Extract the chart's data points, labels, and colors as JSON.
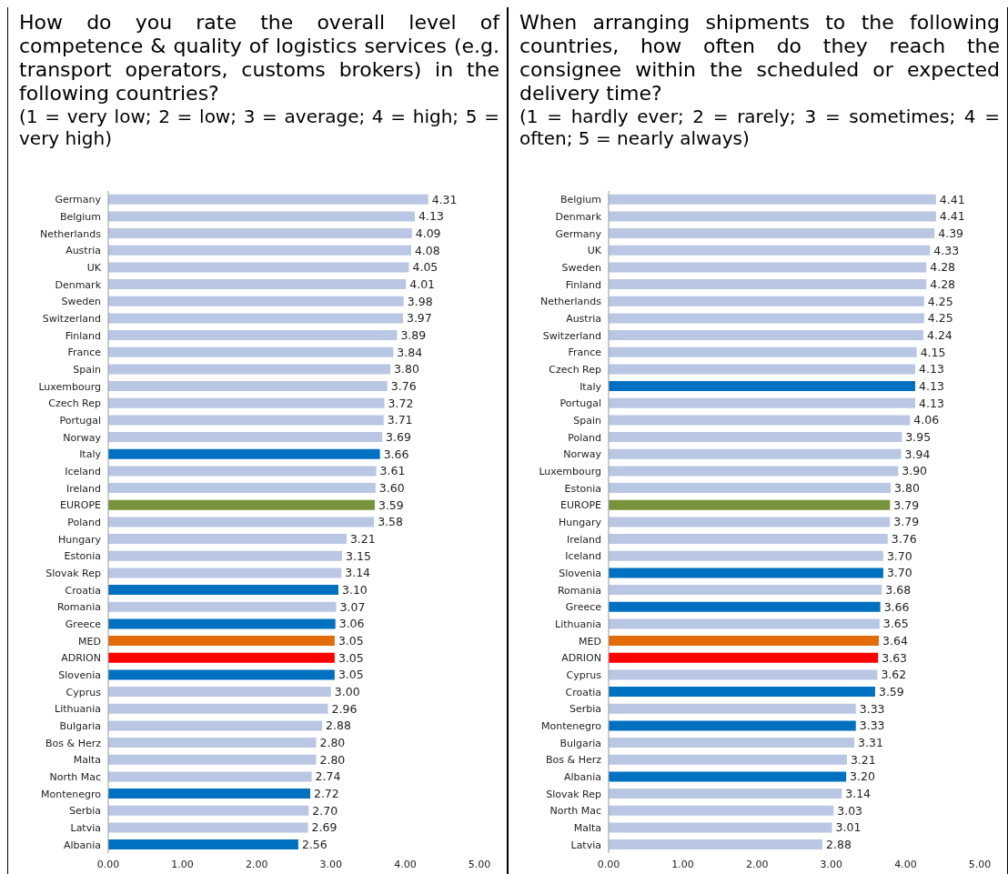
{
  "chart_data": [
    {
      "type": "bar",
      "orientation": "horizontal",
      "title": "How do you rate the overall level of competence & quality of logistics services (e.g. transport operators, customs brokers) in the following countries?",
      "subtitle": "(1 = very low; 2 = low; 3 = average; 4 = high; 5 = very high)",
      "categories": [
        "Germany",
        "Belgium",
        "Netherlands",
        "Austria",
        "UK",
        "Denmark",
        "Sweden",
        "Switzerland",
        "Finland",
        "France",
        "Spain",
        "Luxembourg",
        "Czech Rep",
        "Portugal",
        "Norway",
        "Italy",
        "Iceland",
        "Ireland",
        "EUROPE",
        "Poland",
        "Hungary",
        "Estonia",
        "Slovak Rep",
        "Croatia",
        "Romania",
        "Greece",
        "MED",
        "ADRION",
        "Slovenia",
        "Cyprus",
        "Lithuania",
        "Bulgaria",
        "Bos & Herz",
        "Malta",
        "North Mac",
        "Montenegro",
        "Serbia",
        "Latvia",
        "Albania"
      ],
      "values": [
        4.31,
        4.13,
        4.09,
        4.08,
        4.05,
        4.01,
        3.98,
        3.97,
        3.89,
        3.84,
        3.8,
        3.76,
        3.72,
        3.71,
        3.69,
        3.66,
        3.61,
        3.6,
        3.59,
        3.58,
        3.21,
        3.15,
        3.14,
        3.1,
        3.07,
        3.06,
        3.05,
        3.05,
        3.05,
        3.0,
        2.96,
        2.88,
        2.8,
        2.8,
        2.74,
        2.72,
        2.7,
        2.69,
        2.56
      ],
      "value_labels": [
        "4.31",
        "4.13",
        "4.09",
        "4.08",
        "4.05",
        "4.01",
        "3.98",
        "3.97",
        "3.89",
        "3.84",
        "3.80",
        "3.76",
        "3.72",
        "3.71",
        "3.69",
        "3.66",
        "3.61",
        "3.60",
        "3.59",
        "3.58",
        "3.21",
        "3.15",
        "3.14",
        "3.10",
        "3.07",
        "3.06",
        "3.05",
        "3.05",
        "3.05",
        "3.00",
        "2.96",
        "2.88",
        "2.80",
        "2.80",
        "2.74",
        "2.72",
        "2.70",
        "2.69",
        "2.56"
      ],
      "colors": [
        "#b9c7e4",
        "#b9c7e4",
        "#b9c7e4",
        "#b9c7e4",
        "#b9c7e4",
        "#b9c7e4",
        "#b9c7e4",
        "#b9c7e4",
        "#b9c7e4",
        "#b9c7e4",
        "#b9c7e4",
        "#b9c7e4",
        "#b9c7e4",
        "#b9c7e4",
        "#b9c7e4",
        "#0070c0",
        "#b9c7e4",
        "#b9c7e4",
        "#77933c",
        "#b9c7e4",
        "#b9c7e4",
        "#b9c7e4",
        "#b9c7e4",
        "#0070c0",
        "#b9c7e4",
        "#0070c0",
        "#e36c0a",
        "#ff0000",
        "#0070c0",
        "#b9c7e4",
        "#b9c7e4",
        "#b9c7e4",
        "#b9c7e4",
        "#b9c7e4",
        "#b9c7e4",
        "#0070c0",
        "#b9c7e4",
        "#b9c7e4",
        "#0070c0"
      ],
      "xlim": [
        0,
        5
      ],
      "xticks": [
        {
          "value": 0,
          "label": "0.00"
        },
        {
          "value": 1,
          "label": "1.00"
        },
        {
          "value": 2,
          "label": "2.00"
        },
        {
          "value": 3,
          "label": "3.00"
        },
        {
          "value": 4,
          "label": "4.00"
        },
        {
          "value": 5,
          "label": "5.00"
        }
      ]
    },
    {
      "type": "bar",
      "orientation": "horizontal",
      "title": "When arranging shipments to the following countries, how often do they reach the consignee within the scheduled or expected delivery time?",
      "subtitle": "(1 = hardly ever; 2 = rarely; 3 = sometimes; 4 = often; 5 = nearly always)",
      "categories": [
        "Belgium",
        "Denmark",
        "Germany",
        "UK",
        "Sweden",
        "Finland",
        "Netherlands",
        "Austria",
        "Switzerland",
        "France",
        "Czech Rep",
        "Italy",
        "Portugal",
        "Spain",
        "Poland",
        "Norway",
        "Luxembourg",
        "Estonia",
        "EUROPE",
        "Hungary",
        "Ireland",
        "Iceland",
        "Slovenia",
        "Romania",
        "Greece",
        "Lithuania",
        "MED",
        "ADRION",
        "Cyprus",
        "Croatia",
        "Serbia",
        "Montenegro",
        "Bulgaria",
        "Bos & Herz",
        "Albania",
        "Slovak Rep",
        "North Mac",
        "Malta",
        "Latvia"
      ],
      "values": [
        4.41,
        4.41,
        4.39,
        4.33,
        4.28,
        4.28,
        4.25,
        4.25,
        4.24,
        4.15,
        4.13,
        4.13,
        4.13,
        4.06,
        3.95,
        3.94,
        3.9,
        3.8,
        3.79,
        3.79,
        3.76,
        3.7,
        3.7,
        3.68,
        3.66,
        3.65,
        3.64,
        3.63,
        3.62,
        3.59,
        3.33,
        3.33,
        3.31,
        3.21,
        3.2,
        3.14,
        3.03,
        3.01,
        2.88
      ],
      "value_labels": [
        "4.41",
        "4.41",
        "4.39",
        "4.33",
        "4.28",
        "4.28",
        "4.25",
        "4.25",
        "4.24",
        "4.15",
        "4.13",
        "4.13",
        "4.13",
        "4.06",
        "3.95",
        "3.94",
        "3.90",
        "3.80",
        "3.79",
        "3.79",
        "3.76",
        "3.70",
        "3.70",
        "3.68",
        "3.66",
        "3.65",
        "3.64",
        "3.63",
        "3.62",
        "3.59",
        "3.33",
        "3.33",
        "3.31",
        "3.21",
        "3.20",
        "3.14",
        "3.03",
        "3.01",
        "2.88"
      ],
      "colors": [
        "#b9c7e4",
        "#b9c7e4",
        "#b9c7e4",
        "#b9c7e4",
        "#b9c7e4",
        "#b9c7e4",
        "#b9c7e4",
        "#b9c7e4",
        "#b9c7e4",
        "#b9c7e4",
        "#b9c7e4",
        "#0070c0",
        "#b9c7e4",
        "#b9c7e4",
        "#b9c7e4",
        "#b9c7e4",
        "#b9c7e4",
        "#b9c7e4",
        "#77933c",
        "#b9c7e4",
        "#b9c7e4",
        "#b9c7e4",
        "#0070c0",
        "#b9c7e4",
        "#0070c0",
        "#b9c7e4",
        "#e36c0a",
        "#ff0000",
        "#b9c7e4",
        "#0070c0",
        "#b9c7e4",
        "#0070c0",
        "#b9c7e4",
        "#b9c7e4",
        "#0070c0",
        "#b9c7e4",
        "#b9c7e4",
        "#b9c7e4",
        "#b9c7e4"
      ],
      "xlim": [
        0,
        5
      ],
      "xticks": [
        {
          "value": 0,
          "label": "0.00"
        },
        {
          "value": 1,
          "label": "1.00"
        },
        {
          "value": 2,
          "label": "2.00"
        },
        {
          "value": 3,
          "label": "3.00"
        },
        {
          "value": 4,
          "label": "4.00"
        },
        {
          "value": 5,
          "label": "5.00"
        }
      ]
    }
  ]
}
